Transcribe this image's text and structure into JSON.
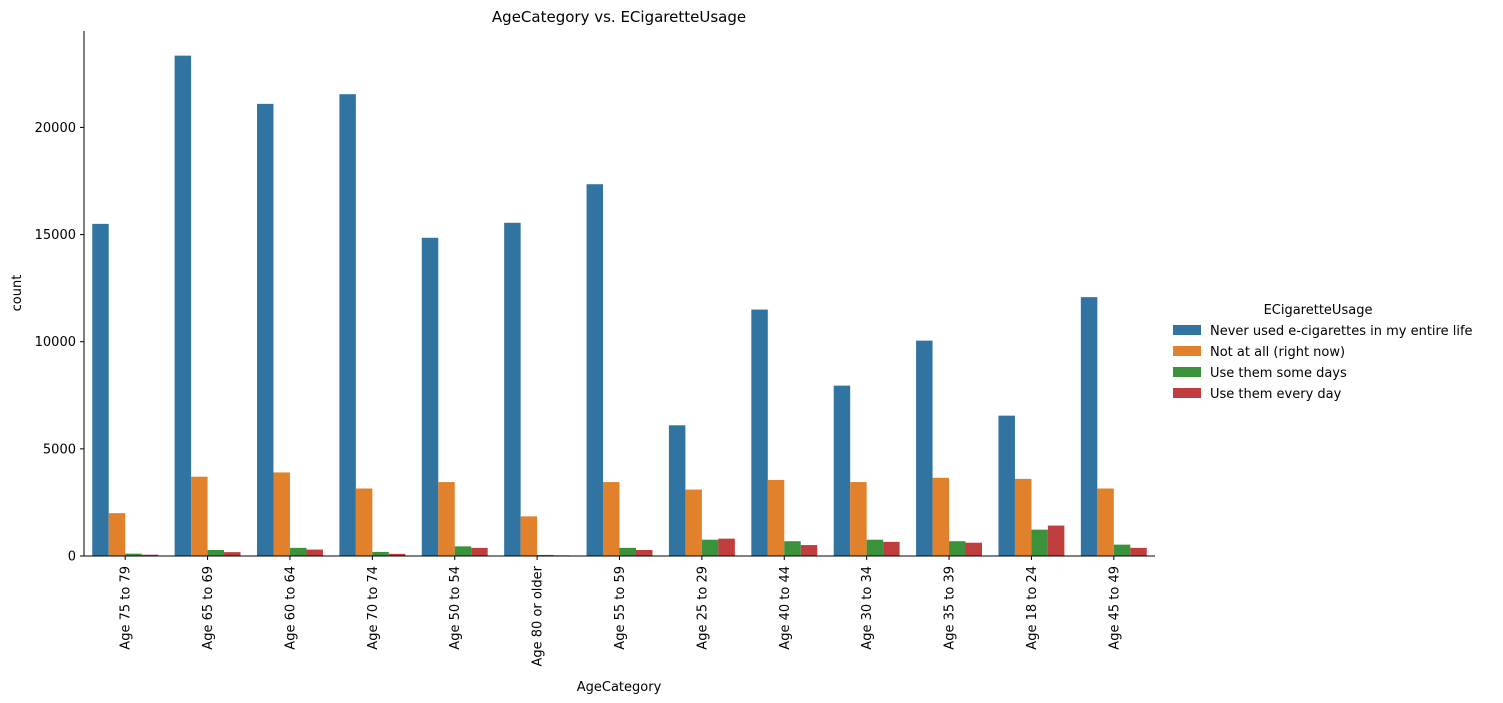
{
  "chart_data": {
    "type": "bar",
    "title": "AgeCategory vs. ECigaretteUsage",
    "xlabel": "AgeCategory",
    "ylabel": "count",
    "ylim": [
      0,
      24500
    ],
    "yticks": [
      0,
      5000,
      10000,
      15000,
      20000
    ],
    "grid": false,
    "legend_position": "right",
    "legend_title": "ECigaretteUsage",
    "categories": [
      "Age 75 to 79",
      "Age 65 to 69",
      "Age 60 to 64",
      "Age 70 to 74",
      "Age 50 to 54",
      "Age 80 or older",
      "Age 55 to 59",
      "Age 25 to 29",
      "Age 40 to 44",
      "Age 30 to 34",
      "Age 35 to 39",
      "Age 18 to 24",
      "Age 45 to 49"
    ],
    "series": [
      {
        "name": "Never used e-cigarettes in my entire life",
        "color": "#3274a1",
        "values": [
          15500,
          23350,
          21100,
          21550,
          14850,
          15550,
          17350,
          6100,
          11500,
          7950,
          10050,
          6550,
          12080
        ]
      },
      {
        "name": "Not at all (right now)",
        "color": "#e1812c",
        "values": [
          2000,
          3700,
          3900,
          3150,
          3450,
          1850,
          3450,
          3100,
          3550,
          3450,
          3650,
          3600,
          3150
        ]
      },
      {
        "name": "Use them some days",
        "color": "#3a923a",
        "values": [
          110,
          280,
          380,
          190,
          450,
          50,
          380,
          760,
          690,
          760,
          690,
          1230,
          530
        ]
      },
      {
        "name": "Use them every day",
        "color": "#c03d3e",
        "values": [
          60,
          180,
          300,
          100,
          380,
          30,
          280,
          810,
          510,
          660,
          620,
          1420,
          380
        ]
      }
    ]
  }
}
